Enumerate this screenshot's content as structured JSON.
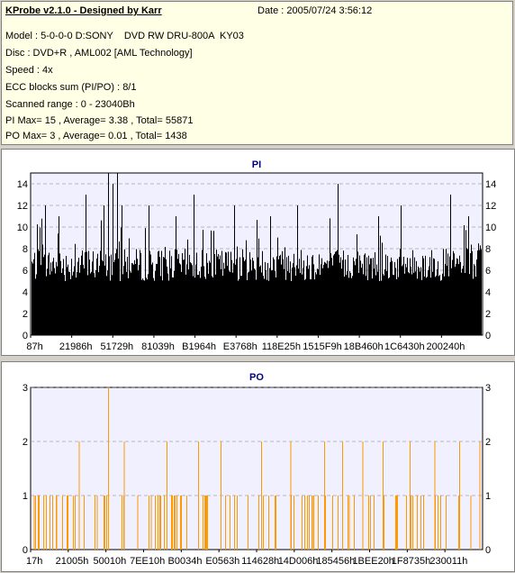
{
  "app": {
    "title": "KProbe v2.1.0 - Designed by Karr",
    "date": "Date : 2005/07/24 3:56:12"
  },
  "info": {
    "model": "Model : 5-0-0-0 D:SONY    DVD RW DRU-800A  KY03",
    "disc": "Disc : DVD+R , AML002 [AML Technology]",
    "speed": "Speed : 4x",
    "ecc": "ECC blocks sum (PI/PO) : 8/1",
    "range": "Scanned range : 0 - 23040Bh",
    "pi": "PI Max= 15 , Average= 3.38 , Total= 55871",
    "po": "PO Max= 3 , Average= 0.01 , Total= 1438"
  },
  "colors": {
    "pi_bars": "#000000",
    "po_bars": "#ff9900",
    "plot_bg": "#f0f0ff",
    "grid": "#808080"
  },
  "chart_data": [
    {
      "type": "bar",
      "title": "PI",
      "ylim": [
        0,
        15
      ],
      "yticks": [
        0,
        2,
        4,
        6,
        8,
        10,
        12,
        14
      ],
      "xtick_labels": [
        "87h",
        "21986h",
        "51729h",
        "81039h",
        "B1964h",
        "E3768h",
        "118E25h",
        "1515F9h",
        "18B460h",
        "1C6430h",
        "200240h"
      ],
      "baseline_range": [
        5,
        8
      ],
      "peaks": [
        {
          "pos": 0.03,
          "value": 12
        },
        {
          "pos": 0.06,
          "value": 11
        },
        {
          "pos": 0.12,
          "value": 13
        },
        {
          "pos": 0.16,
          "value": 12
        },
        {
          "pos": 0.17,
          "value": 15
        },
        {
          "pos": 0.18,
          "value": 14
        },
        {
          "pos": 0.19,
          "value": 15
        },
        {
          "pos": 0.2,
          "value": 12
        },
        {
          "pos": 0.26,
          "value": 12
        },
        {
          "pos": 0.32,
          "value": 11
        },
        {
          "pos": 0.36,
          "value": 13
        },
        {
          "pos": 0.45,
          "value": 12
        },
        {
          "pos": 0.53,
          "value": 11
        },
        {
          "pos": 0.59,
          "value": 12
        },
        {
          "pos": 0.68,
          "value": 14
        },
        {
          "pos": 0.77,
          "value": 11
        },
        {
          "pos": 0.82,
          "value": 12
        },
        {
          "pos": 0.93,
          "value": 13
        },
        {
          "pos": 0.97,
          "value": 11
        }
      ]
    },
    {
      "type": "bar",
      "title": "PO",
      "ylim": [
        0,
        3
      ],
      "yticks": [
        0,
        1,
        2,
        3
      ],
      "xtick_labels": [
        "17h",
        "21005h",
        "50010h",
        "7EE10h",
        "B0034h",
        "E0563h",
        "114628h",
        "14D006h",
        "185456h",
        "1BEE20h",
        "1F8735h",
        "230011h"
      ],
      "baseline_value": 0,
      "spikes": [
        {
          "pos": 0.005,
          "value": 1
        },
        {
          "pos": 0.055,
          "value": 1
        },
        {
          "pos": 0.08,
          "value": 1
        },
        {
          "pos": 0.105,
          "value": 2
        },
        {
          "pos": 0.145,
          "value": 1
        },
        {
          "pos": 0.17,
          "value": 3
        },
        {
          "pos": 0.2,
          "value": 1
        },
        {
          "pos": 0.205,
          "value": 2
        },
        {
          "pos": 0.235,
          "value": 1
        },
        {
          "pos": 0.265,
          "value": 1
        },
        {
          "pos": 0.3,
          "value": 2
        },
        {
          "pos": 0.33,
          "value": 1
        },
        {
          "pos": 0.37,
          "value": 2
        },
        {
          "pos": 0.39,
          "value": 1
        },
        {
          "pos": 0.42,
          "value": 2
        },
        {
          "pos": 0.45,
          "value": 1
        },
        {
          "pos": 0.48,
          "value": 1
        },
        {
          "pos": 0.51,
          "value": 2
        },
        {
          "pos": 0.54,
          "value": 1
        },
        {
          "pos": 0.575,
          "value": 2
        },
        {
          "pos": 0.6,
          "value": 1
        },
        {
          "pos": 0.625,
          "value": 1
        },
        {
          "pos": 0.65,
          "value": 2
        },
        {
          "pos": 0.69,
          "value": 2
        },
        {
          "pos": 0.705,
          "value": 1
        },
        {
          "pos": 0.735,
          "value": 2
        },
        {
          "pos": 0.76,
          "value": 1
        },
        {
          "pos": 0.78,
          "value": 2
        },
        {
          "pos": 0.81,
          "value": 1
        },
        {
          "pos": 0.84,
          "value": 2
        },
        {
          "pos": 0.87,
          "value": 1
        },
        {
          "pos": 0.895,
          "value": 2
        },
        {
          "pos": 0.92,
          "value": 1
        },
        {
          "pos": 0.95,
          "value": 2
        },
        {
          "pos": 0.975,
          "value": 1
        },
        {
          "pos": 0.995,
          "value": 2
        }
      ]
    }
  ]
}
